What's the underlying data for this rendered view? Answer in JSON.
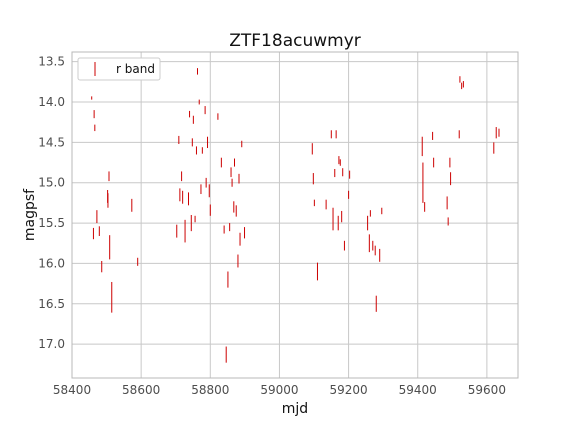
{
  "chart_data": {
    "type": "scatter",
    "title": "ZTF18acuwmyr",
    "xlabel": "mjd",
    "ylabel": "magpsf",
    "xlim": [
      58400,
      59690
    ],
    "ylim": [
      17.42,
      13.38
    ],
    "y_inverted": true,
    "grid": true,
    "legend_position": "upper-left",
    "xticks": [
      58400,
      58600,
      58800,
      59000,
      59200,
      59400,
      59600
    ],
    "yticks": [
      13.5,
      14.0,
      14.5,
      15.0,
      15.5,
      16.0,
      16.5,
      17.0
    ],
    "series": [
      {
        "name": "r band",
        "color": "#cc0000",
        "marker": "errorbar",
        "points": [
          [
            58457,
            13.95,
            0.02
          ],
          [
            58462,
            15.63,
            0.07
          ],
          [
            58464,
            14.15,
            0.05
          ],
          [
            58466,
            14.32,
            0.04
          ],
          [
            58472,
            15.42,
            0.08
          ],
          [
            58479,
            15.6,
            0.06
          ],
          [
            58486,
            16.04,
            0.07
          ],
          [
            58503,
            15.17,
            0.08
          ],
          [
            58504,
            15.22,
            0.09
          ],
          [
            58507,
            14.92,
            0.06
          ],
          [
            58509,
            15.8,
            0.15
          ],
          [
            58515,
            16.42,
            0.19
          ],
          [
            58573,
            15.28,
            0.08
          ],
          [
            58590,
            15.98,
            0.05
          ],
          [
            58703,
            15.6,
            0.08
          ],
          [
            58709,
            14.47,
            0.05
          ],
          [
            58712,
            15.15,
            0.08
          ],
          [
            58717,
            14.92,
            0.06
          ],
          [
            58720,
            15.18,
            0.08
          ],
          [
            58727,
            15.6,
            0.14
          ],
          [
            58737,
            15.2,
            0.08
          ],
          [
            58740,
            14.15,
            0.04
          ],
          [
            58745,
            15.5,
            0.1
          ],
          [
            58748,
            14.5,
            0.05
          ],
          [
            58751,
            14.22,
            0.05
          ],
          [
            58756,
            15.45,
            0.04
          ],
          [
            58760,
            14.6,
            0.05
          ],
          [
            58763,
            13.62,
            0.04
          ],
          [
            58768,
            14.0,
            0.03
          ],
          [
            58773,
            15.08,
            0.06
          ],
          [
            58777,
            14.6,
            0.04
          ],
          [
            58785,
            14.1,
            0.05
          ],
          [
            58788,
            15.0,
            0.06
          ],
          [
            58792,
            14.5,
            0.07
          ],
          [
            58797,
            15.1,
            0.08
          ],
          [
            58800,
            15.34,
            0.07
          ],
          [
            58822,
            14.18,
            0.04
          ],
          [
            58832,
            14.75,
            0.06
          ],
          [
            58840,
            15.58,
            0.05
          ],
          [
            58846,
            17.13,
            0.1
          ],
          [
            58851,
            16.2,
            0.1
          ],
          [
            58856,
            15.55,
            0.05
          ],
          [
            58860,
            14.87,
            0.06
          ],
          [
            58863,
            15.0,
            0.05
          ],
          [
            58868,
            15.3,
            0.07
          ],
          [
            58870,
            14.75,
            0.05
          ],
          [
            58875,
            15.35,
            0.07
          ],
          [
            58880,
            15.97,
            0.08
          ],
          [
            58883,
            14.95,
            0.06
          ],
          [
            58886,
            15.7,
            0.08
          ],
          [
            58891,
            14.52,
            0.04
          ],
          [
            58899,
            15.62,
            0.07
          ],
          [
            59095,
            14.58,
            0.07
          ],
          [
            59098,
            14.95,
            0.07
          ],
          [
            59101,
            15.25,
            0.04
          ],
          [
            59110,
            16.1,
            0.11
          ],
          [
            59135,
            15.27,
            0.06
          ],
          [
            59150,
            14.4,
            0.05
          ],
          [
            59155,
            15.45,
            0.14
          ],
          [
            59160,
            14.88,
            0.05
          ],
          [
            59164,
            14.4,
            0.05
          ],
          [
            59170,
            15.5,
            0.09
          ],
          [
            59172,
            14.72,
            0.05
          ],
          [
            59176,
            14.75,
            0.04
          ],
          [
            59180,
            15.42,
            0.07
          ],
          [
            59183,
            14.87,
            0.05
          ],
          [
            59188,
            15.78,
            0.06
          ],
          [
            59200,
            15.15,
            0.05
          ],
          [
            59203,
            14.9,
            0.05
          ],
          [
            59255,
            15.5,
            0.09
          ],
          [
            59260,
            15.75,
            0.11
          ],
          [
            59263,
            15.38,
            0.04
          ],
          [
            59270,
            15.78,
            0.06
          ],
          [
            59277,
            15.84,
            0.06
          ],
          [
            59280,
            16.5,
            0.1
          ],
          [
            59290,
            15.9,
            0.08
          ],
          [
            59296,
            15.35,
            0.04
          ],
          [
            59413,
            14.55,
            0.12
          ],
          [
            59415,
            15.0,
            0.25
          ],
          [
            59420,
            15.3,
            0.06
          ],
          [
            59443,
            14.42,
            0.05
          ],
          [
            59446,
            14.75,
            0.06
          ],
          [
            59485,
            15.25,
            0.08
          ],
          [
            59488,
            15.48,
            0.05
          ],
          [
            59493,
            14.75,
            0.06
          ],
          [
            59495,
            14.95,
            0.08
          ],
          [
            59520,
            14.4,
            0.05
          ],
          [
            59522,
            13.72,
            0.04
          ],
          [
            59527,
            13.8,
            0.04
          ],
          [
            59532,
            13.78,
            0.04
          ],
          [
            59620,
            14.57,
            0.07
          ],
          [
            59627,
            14.38,
            0.07
          ],
          [
            59635,
            14.38,
            0.05
          ]
        ]
      }
    ]
  }
}
